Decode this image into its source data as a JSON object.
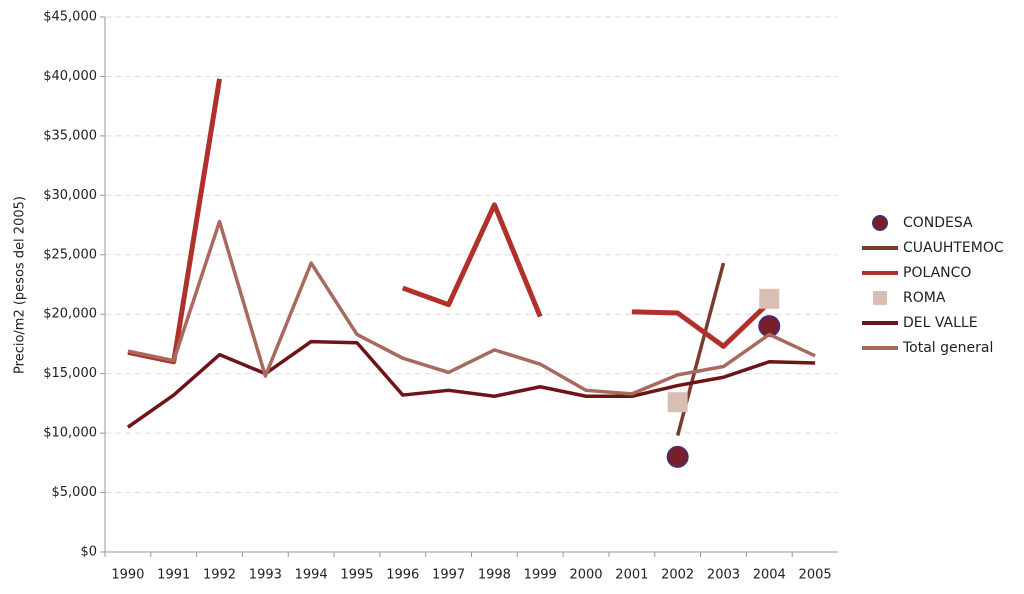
{
  "chart_data": {
    "type": "line",
    "y_label": "Precio/m2 (pesos del 2005)",
    "categories": [
      "1990",
      "1991",
      "1992",
      "1993",
      "1994",
      "1995",
      "1996",
      "1997",
      "1998",
      "1999",
      "2000",
      "2001",
      "2002",
      "2003",
      "2004",
      "2005"
    ],
    "ylim": [
      0,
      45000
    ],
    "yticks": [
      {
        "value": 0,
        "label": "$0"
      },
      {
        "value": 5000,
        "label": "$5,000"
      },
      {
        "value": 10000,
        "label": "$10,000"
      },
      {
        "value": 15000,
        "label": "$15,000"
      },
      {
        "value": 20000,
        "label": "$20,000"
      },
      {
        "value": 25000,
        "label": "$25,000"
      },
      {
        "value": 30000,
        "label": "$30,000"
      },
      {
        "value": 35000,
        "label": "$35,000"
      },
      {
        "value": 40000,
        "label": "$40,000"
      },
      {
        "value": 45000,
        "label": "$45,000"
      }
    ],
    "grid": true,
    "legend": "right",
    "series": [
      {
        "name": "CONDESA",
        "color": "#7a1f2a",
        "marker": "circle",
        "values": [
          null,
          null,
          null,
          null,
          null,
          null,
          null,
          null,
          null,
          null,
          null,
          null,
          8000,
          null,
          19000,
          null
        ]
      },
      {
        "name": "CUAUHTEMOC",
        "color": "#7a3b2e",
        "values": [
          null,
          null,
          null,
          null,
          null,
          null,
          null,
          null,
          null,
          null,
          null,
          null,
          9800,
          24300,
          null,
          null
        ]
      },
      {
        "name": "POLANCO",
        "color": "#b0302a",
        "values": [
          16800,
          16000,
          39800,
          null,
          null,
          null,
          22200,
          20800,
          29200,
          19800,
          null,
          20200,
          20100,
          17300,
          21000,
          null
        ]
      },
      {
        "name": "ROMA",
        "color": "#d9beb4",
        "marker": "square",
        "values": [
          null,
          null,
          null,
          null,
          null,
          null,
          null,
          null,
          null,
          null,
          null,
          null,
          12600,
          null,
          21300,
          null
        ]
      },
      {
        "name": "DEL VALLE",
        "color": "#6e1419",
        "values": [
          10500,
          13200,
          16600,
          15000,
          17700,
          17600,
          13200,
          13600,
          13100,
          13900,
          13100,
          13100,
          14000,
          14700,
          16000,
          15900
        ]
      },
      {
        "name": "Total general",
        "color": "#a86a5e",
        "values": [
          16900,
          16100,
          27800,
          14800,
          24300,
          18300,
          16300,
          15100,
          17000,
          15800,
          13600,
          13300,
          14900,
          15600,
          18300,
          16500
        ]
      }
    ]
  }
}
